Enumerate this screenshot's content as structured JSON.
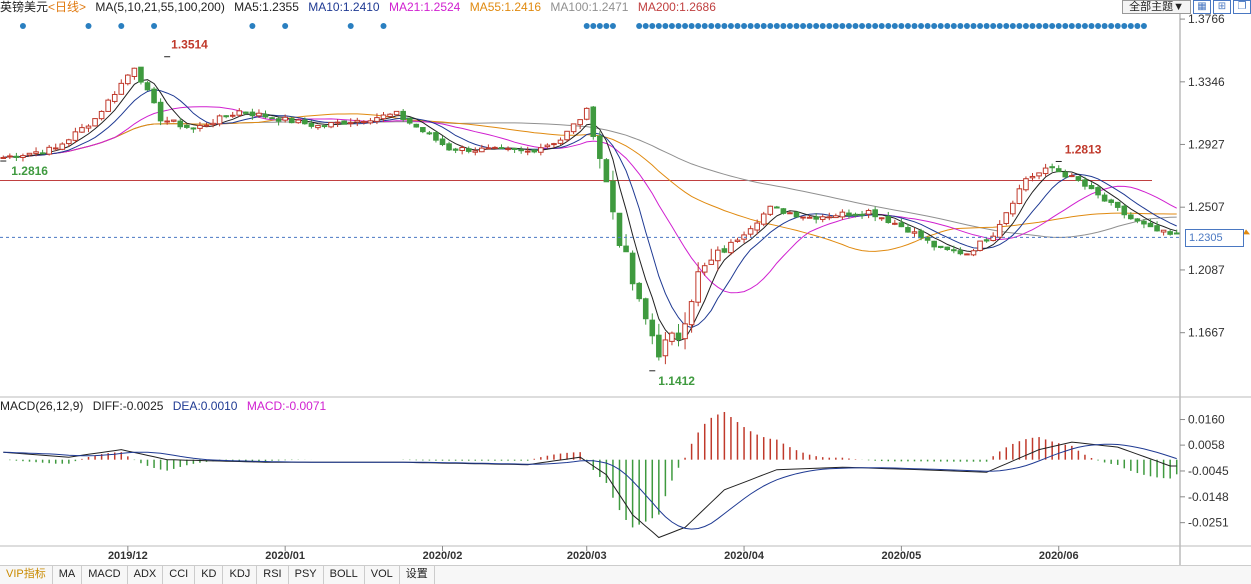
{
  "header": {
    "symbol": "英镑美元",
    "period": "<日线>",
    "ma_label": "MA(5,10,21,55,100,200)",
    "ma_values": [
      {
        "label": "MA5:1.2355",
        "color": "#222222"
      },
      {
        "label": "MA10:1.2410",
        "color": "#1f3a93"
      },
      {
        "label": "MA21:1.2524",
        "color": "#d020d0"
      },
      {
        "label": "MA55:1.2416",
        "color": "#e08a10"
      },
      {
        "label": "MA100:1.2471",
        "color": "#909090"
      },
      {
        "label": "MA200:1.2686",
        "color": "#c04040"
      }
    ],
    "theme_button": "全部主题▼",
    "tool_icons": [
      "grid-icon",
      "zoom-icon",
      "window-icon"
    ]
  },
  "macd_header": {
    "title": "MACD(26,12,9)",
    "diff": "DIFF:-0.0025",
    "dea": "DEA:0.0010",
    "macd": "MACD:-0.0071"
  },
  "last_price": "1.2305",
  "tabs": [
    "VIP指标",
    "MA",
    "MACD",
    "ADX",
    "CCI",
    "KD",
    "KDJ",
    "RSI",
    "PSY",
    "BOLL",
    "VOL",
    "设置"
  ],
  "colors": {
    "up": "#c0392b",
    "down": "#3f9a3f",
    "price_tag": "#4a78c2"
  },
  "chart_data": {
    "type": "candlestick",
    "x_ticks": [
      "2019/12",
      "2020/01",
      "2020/02",
      "2020/03",
      "2020/04",
      "2020/05",
      "2020/06"
    ],
    "price_axis": {
      "ticks": [
        1.3766,
        1.3346,
        1.2927,
        1.2507,
        1.2087,
        1.1667
      ],
      "ylim": [
        1.125,
        1.38
      ]
    },
    "annotations": [
      {
        "text": "1.3514",
        "value": 1.3514,
        "kind": "high"
      },
      {
        "text": "1.2816",
        "value": 1.2816,
        "kind": "start"
      },
      {
        "text": "1.1412",
        "value": 1.1412,
        "kind": "low"
      },
      {
        "text": "1.2813",
        "value": 1.2813,
        "kind": "high"
      }
    ],
    "current_price": 1.2305,
    "ma200_level": 1.2686,
    "close_points": [
      [
        0,
        1.284
      ],
      [
        8,
        1.29
      ],
      [
        14,
        1.31
      ],
      [
        20,
        1.345
      ],
      [
        24,
        1.31
      ],
      [
        29,
        1.303
      ],
      [
        36,
        1.315
      ],
      [
        48,
        1.305
      ],
      [
        60,
        1.313
      ],
      [
        68,
        1.29
      ],
      [
        80,
        1.288
      ],
      [
        85,
        1.296
      ],
      [
        89,
        1.315
      ],
      [
        91,
        1.285
      ],
      [
        94,
        1.23
      ],
      [
        97,
        1.185
      ],
      [
        100,
        1.155
      ],
      [
        103,
        1.165
      ],
      [
        106,
        1.205
      ],
      [
        112,
        1.23
      ],
      [
        117,
        1.25
      ],
      [
        123,
        1.244
      ],
      [
        132,
        1.248
      ],
      [
        138,
        1.236
      ],
      [
        143,
        1.222
      ],
      [
        147,
        1.22
      ],
      [
        151,
        1.233
      ],
      [
        156,
        1.27
      ],
      [
        160,
        1.277
      ],
      [
        164,
        1.268
      ],
      [
        168,
        1.255
      ],
      [
        172,
        1.243
      ],
      [
        175,
        1.236
      ],
      [
        178,
        1.232
      ]
    ],
    "macd_axis": {
      "ticks": [
        0.016,
        0.0058,
        -0.0045,
        -0.0148,
        -0.0251
      ],
      "ylim": [
        -0.034,
        0.019
      ]
    },
    "macd_points": [
      [
        0,
        0.003
      ],
      [
        10,
        0.001
      ],
      [
        18,
        0.004
      ],
      [
        25,
        0.0
      ],
      [
        40,
        -0.001
      ],
      [
        60,
        -0.001
      ],
      [
        80,
        -0.002
      ],
      [
        88,
        0.001
      ],
      [
        92,
        -0.006
      ],
      [
        96,
        -0.022
      ],
      [
        100,
        -0.031
      ],
      [
        104,
        -0.027
      ],
      [
        110,
        -0.012
      ],
      [
        118,
        -0.004
      ],
      [
        128,
        -0.003
      ],
      [
        140,
        -0.004
      ],
      [
        150,
        -0.005
      ],
      [
        158,
        0.004
      ],
      [
        163,
        0.007
      ],
      [
        170,
        0.005
      ],
      [
        178,
        -0.0025
      ]
    ],
    "dea_offset_bars": 4
  }
}
